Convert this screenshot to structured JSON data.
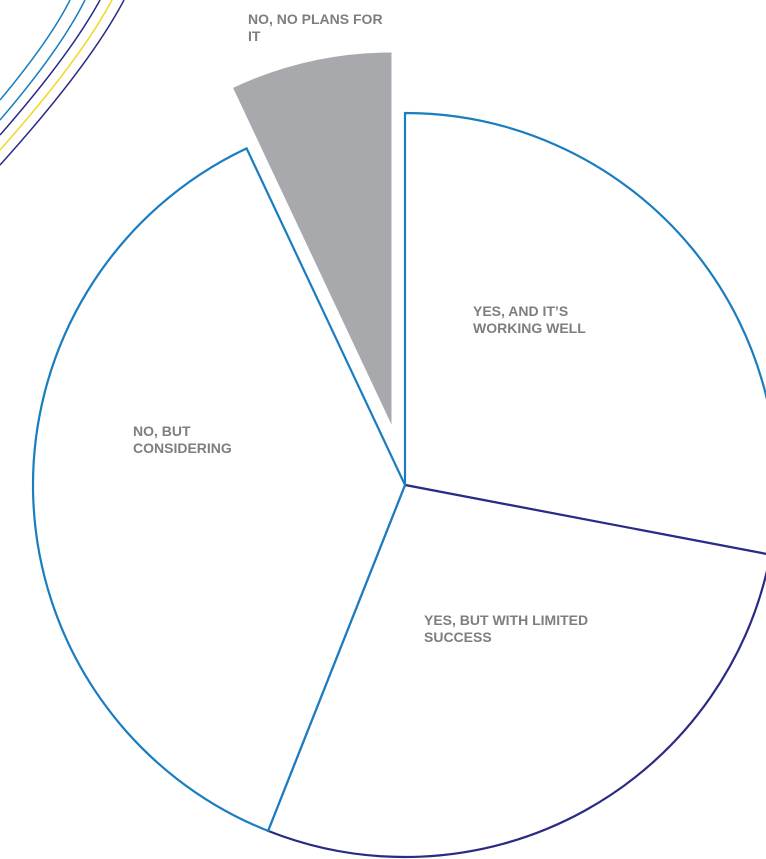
{
  "chart_data": {
    "type": "pie",
    "categories": [
      "YES, AND IT’S WORKING WELL",
      "YES, BUT WITH LIMITED SUCCESS",
      "NO, BUT CONSIDERING",
      "NO, NO PLANS FOR IT"
    ],
    "values": [
      28,
      28,
      37,
      7
    ],
    "colors": [
      "#1a7dc0",
      "#2b2a85",
      "#1a7dc0",
      "#a7a9ac"
    ],
    "explode": [
      false,
      false,
      false,
      true
    ]
  }
}
